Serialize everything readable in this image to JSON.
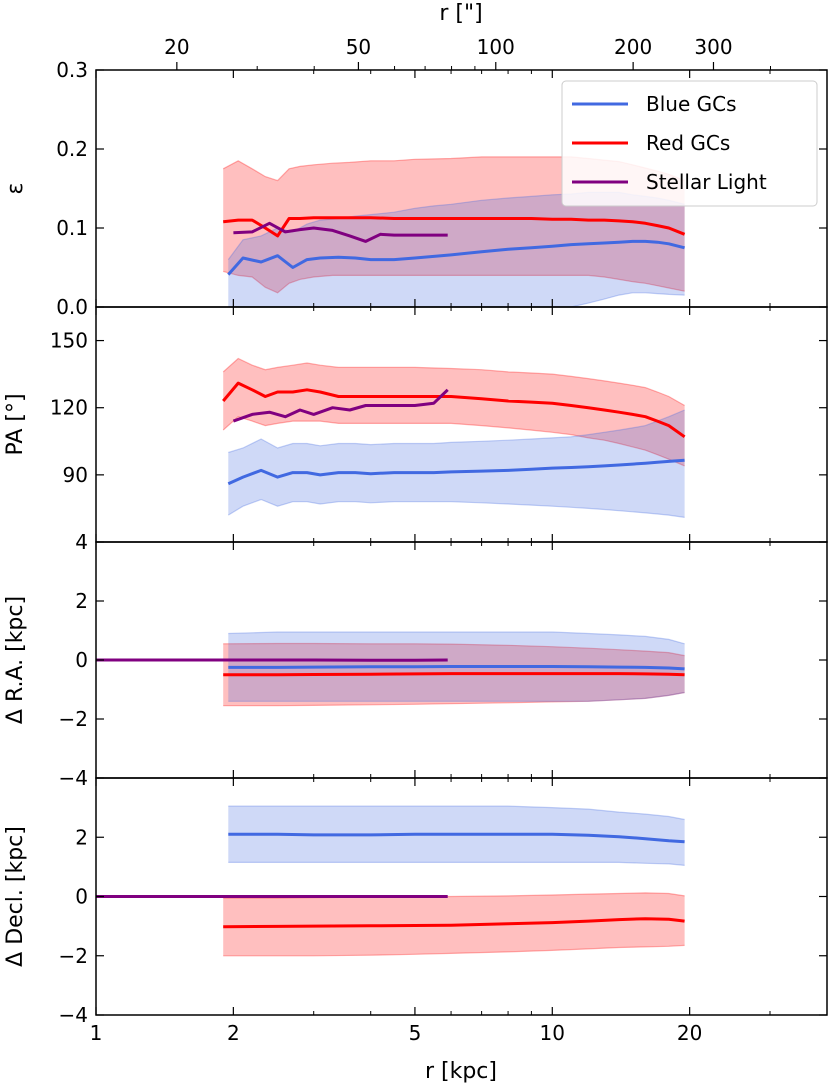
{
  "chart_data": {
    "type": "line",
    "figure": "GC system and stellar light profiles vs radius",
    "x_axis": {
      "label": "r [kpc]",
      "scale": "log",
      "range": [
        1,
        40
      ],
      "ticks": [
        1,
        2,
        5,
        10,
        20
      ]
    },
    "top_axis": {
      "label": "r [\"]",
      "ticks": [
        20,
        50,
        100,
        200,
        300
      ],
      "arcsec_per_kpc": 13.3
    },
    "legend": {
      "position": "top-right",
      "entries": [
        {
          "name": "Blue GCs",
          "color": "#4169e1"
        },
        {
          "name": "Red GCs",
          "color": "#ff0000"
        },
        {
          "name": "Stellar Light",
          "color": "#800080"
        }
      ]
    },
    "panels": [
      {
        "id": "ellipticity",
        "ylabel": "ε",
        "ylim": [
          0,
          0.3
        ],
        "yticks": [
          "0.0",
          "0.1",
          "0.2",
          "0.3"
        ],
        "series": [
          {
            "name": "Blue GCs",
            "x": [
              1.95,
              2.1,
              2.3,
              2.5,
              2.7,
              2.9,
              3.1,
              3.4,
              3.7,
              4.0,
              4.5,
              5.0,
              5.5,
              6.0,
              7.0,
              8.0,
              9.0,
              10.0,
              11.0,
              12.0,
              13.0,
              14.0,
              15.0,
              16.0,
              17.0,
              18.0,
              19.5
            ],
            "y": [
              0.041,
              0.062,
              0.057,
              0.065,
              0.05,
              0.06,
              0.062,
              0.063,
              0.062,
              0.06,
              0.06,
              0.062,
              0.064,
              0.066,
              0.07,
              0.073,
              0.075,
              0.077,
              0.079,
              0.08,
              0.081,
              0.082,
              0.083,
              0.083,
              0.082,
              0.08,
              0.075
            ],
            "lower": [
              0.0,
              0.0,
              0.0,
              0.0,
              0.0,
              0.0,
              0.0,
              0.0,
              0.0,
              0.0,
              0.0,
              0.0,
              0.0,
              0.0,
              0.0,
              0.0,
              0.0,
              0.0,
              0.0,
              0.005,
              0.01,
              0.015,
              0.018,
              0.018,
              0.017,
              0.016,
              0.015
            ],
            "upper": [
              0.06,
              0.085,
              0.09,
              0.1,
              0.095,
              0.105,
              0.11,
              0.112,
              0.115,
              0.117,
              0.12,
              0.125,
              0.128,
              0.13,
              0.135,
              0.138,
              0.14,
              0.142,
              0.143,
              0.145,
              0.145,
              0.145,
              0.142,
              0.14,
              0.138,
              0.135,
              0.13
            ]
          },
          {
            "name": "Red GCs",
            "x": [
              1.9,
              2.05,
              2.2,
              2.35,
              2.5,
              2.65,
              2.8,
              3.0,
              3.3,
              3.6,
              4.0,
              4.5,
              5.0,
              6.0,
              7.0,
              8.0,
              9.0,
              10.0,
              11.0,
              12.0,
              13.0,
              14.0,
              15.0,
              16.0,
              17.0,
              18.0,
              19.5
            ],
            "y": [
              0.108,
              0.11,
              0.11,
              0.1,
              0.09,
              0.112,
              0.112,
              0.113,
              0.113,
              0.113,
              0.113,
              0.112,
              0.112,
              0.112,
              0.112,
              0.112,
              0.112,
              0.111,
              0.111,
              0.11,
              0.11,
              0.109,
              0.108,
              0.106,
              0.103,
              0.1,
              0.092
            ],
            "lower": [
              0.045,
              0.04,
              0.038,
              0.025,
              0.018,
              0.03,
              0.035,
              0.038,
              0.04,
              0.04,
              0.04,
              0.04,
              0.04,
              0.04,
              0.04,
              0.04,
              0.04,
              0.04,
              0.04,
              0.04,
              0.038,
              0.035,
              0.032,
              0.03,
              0.027,
              0.024,
              0.02
            ],
            "upper": [
              0.175,
              0.185,
              0.175,
              0.165,
              0.16,
              0.175,
              0.178,
              0.18,
              0.182,
              0.183,
              0.185,
              0.185,
              0.187,
              0.188,
              0.19,
              0.19,
              0.19,
              0.19,
              0.19,
              0.188,
              0.186,
              0.184,
              0.18,
              0.176,
              0.172,
              0.168,
              0.16
            ]
          },
          {
            "name": "Stellar Light",
            "x": [
              2.0,
              2.2,
              2.4,
              2.6,
              2.8,
              3.0,
              3.3,
              3.6,
              3.9,
              4.2,
              4.5,
              5.0,
              5.5,
              5.9
            ],
            "y": [
              0.094,
              0.095,
              0.106,
              0.095,
              0.098,
              0.1,
              0.097,
              0.09,
              0.083,
              0.092,
              0.091,
              0.091,
              0.091,
              0.091
            ]
          }
        ]
      },
      {
        "id": "position-angle",
        "ylabel": "PA [°]",
        "ylim": [
          60,
          165
        ],
        "yticks": [
          "90",
          "120",
          "150"
        ],
        "series": [
          {
            "name": "Blue GCs",
            "x": [
              1.95,
              2.1,
              2.3,
              2.5,
              2.7,
              2.9,
              3.1,
              3.4,
              3.7,
              4.0,
              4.5,
              5.0,
              5.5,
              6.0,
              7.0,
              8.0,
              9.0,
              10.0,
              11.0,
              12.0,
              13.0,
              14.0,
              15.0,
              16.0,
              17.0,
              18.0,
              19.5
            ],
            "y": [
              86,
              89,
              92,
              89,
              91,
              91,
              90,
              91,
              91,
              90.5,
              91,
              91,
              91,
              91.3,
              91.7,
              92,
              92.5,
              93,
              93.3,
              93.6,
              94,
              94.4,
              94.8,
              95.2,
              95.6,
              96,
              96.5
            ],
            "lower": [
              72,
              76,
              79,
              76,
              78,
              78,
              77,
              78,
              78,
              77.5,
              78,
              78,
              78,
              78,
              77.5,
              77,
              76.5,
              76,
              75.5,
              75,
              74.5,
              74,
              73.5,
              73,
              72.5,
              72,
              71
            ],
            "upper": [
              100,
              102,
              106,
              102,
              104,
              104,
              103,
              104,
              104,
              103.5,
              104,
              104,
              104,
              104.5,
              105,
              105.5,
              106,
              106.5,
              107,
              108,
              109,
              110,
              111,
              112,
              114,
              116,
              119
            ]
          },
          {
            "name": "Red GCs",
            "x": [
              1.9,
              2.05,
              2.2,
              2.35,
              2.5,
              2.7,
              2.9,
              3.1,
              3.4,
              3.7,
              4.0,
              4.5,
              5.0,
              6.0,
              7.0,
              8.0,
              9.0,
              10.0,
              11.0,
              12.0,
              13.0,
              14.0,
              15.0,
              16.0,
              17.0,
              18.0,
              19.5
            ],
            "y": [
              123,
              131,
              128,
              125,
              127,
              127,
              128,
              127,
              125,
              125,
              125,
              125,
              125,
              125,
              124,
              123,
              122.5,
              122,
              121,
              120,
              119,
              118,
              117,
              116,
              114,
              112,
              107
            ],
            "lower": [
              110,
              116,
              114,
              112,
              113,
              114,
              114,
              114,
              113,
              113,
              113,
              113,
              113,
              113,
              112,
              111,
              110,
              109,
              108,
              106.5,
              105.5,
              104,
              102.5,
              101,
              99,
              97,
              94
            ],
            "upper": [
              136,
              142,
              139,
              137,
              138,
              139,
              140,
              139,
              138,
              138,
              138,
              138,
              138,
              137.5,
              137,
              136,
              135.5,
              135,
              134,
              133,
              132,
              131,
              130,
              129,
              127,
              125,
              121
            ]
          },
          {
            "name": "Stellar Light",
            "x": [
              2.0,
              2.2,
              2.4,
              2.6,
              2.8,
              3.0,
              3.3,
              3.6,
              3.9,
              4.2,
              4.5,
              5.0,
              5.5,
              5.9
            ],
            "y": [
              114,
              117,
              118,
              116,
              119,
              117,
              120,
              119,
              121,
              121,
              121,
              121,
              122,
              128
            ]
          }
        ]
      },
      {
        "id": "delta-ra",
        "ylabel": "Δ R.A. [kpc]",
        "ylim": [
          -4,
          4
        ],
        "yticks": [
          "−4",
          "−2",
          "0",
          "2",
          "4"
        ],
        "series": [
          {
            "name": "Blue GCs",
            "x": [
              1.95,
              2.5,
              3.0,
              4.0,
              5.0,
              6.0,
              8.0,
              10.0,
              12.0,
              14.0,
              16.0,
              18.0,
              19.5
            ],
            "y": [
              -0.25,
              -0.25,
              -0.24,
              -0.23,
              -0.23,
              -0.22,
              -0.22,
              -0.22,
              -0.23,
              -0.24,
              -0.25,
              -0.27,
              -0.3
            ],
            "lower": [
              -1.4,
              -1.4,
              -1.4,
              -1.4,
              -1.4,
              -1.4,
              -1.4,
              -1.4,
              -1.4,
              -1.35,
              -1.3,
              -1.2,
              -1.1
            ],
            "upper": [
              0.9,
              0.95,
              0.95,
              0.95,
              0.95,
              0.95,
              0.95,
              0.95,
              0.9,
              0.85,
              0.8,
              0.7,
              0.55
            ]
          },
          {
            "name": "Red GCs",
            "x": [
              1.9,
              2.5,
              3.0,
              4.0,
              5.0,
              6.0,
              8.0,
              10.0,
              12.0,
              14.0,
              16.0,
              18.0,
              19.5
            ],
            "y": [
              -0.5,
              -0.5,
              -0.49,
              -0.48,
              -0.47,
              -0.46,
              -0.46,
              -0.46,
              -0.46,
              -0.46,
              -0.47,
              -0.48,
              -0.5
            ],
            "lower": [
              -1.55,
              -1.55,
              -1.54,
              -1.52,
              -1.5,
              -1.48,
              -1.45,
              -1.42,
              -1.4,
              -1.35,
              -1.3,
              -1.2,
              -1.1
            ],
            "upper": [
              0.55,
              0.56,
              0.56,
              0.55,
              0.55,
              0.54,
              0.5,
              0.45,
              0.4,
              0.35,
              0.3,
              0.25,
              0.15
            ]
          },
          {
            "name": "Stellar Light",
            "x": [
              1.0,
              2.0,
              3.0,
              4.0,
              5.0,
              5.9
            ],
            "y": [
              0.0,
              0.0,
              0.0,
              -0.01,
              -0.01,
              0.0
            ]
          }
        ]
      },
      {
        "id": "delta-decl",
        "ylabel": "Δ Decl. [kpc]",
        "ylim": [
          -4,
          4
        ],
        "yticks": [
          "−4",
          "−2",
          "0",
          "2"
        ],
        "series": [
          {
            "name": "Blue GCs",
            "x": [
              1.95,
              2.5,
              3.0,
              4.0,
              5.0,
              6.0,
              8.0,
              10.0,
              12.0,
              14.0,
              16.0,
              18.0,
              19.5
            ],
            "y": [
              2.1,
              2.1,
              2.08,
              2.08,
              2.1,
              2.1,
              2.1,
              2.1,
              2.07,
              2.02,
              1.95,
              1.88,
              1.85
            ],
            "lower": [
              1.15,
              1.15,
              1.15,
              1.15,
              1.15,
              1.15,
              1.15,
              1.15,
              1.15,
              1.15,
              1.12,
              1.1,
              1.05
            ],
            "upper": [
              3.05,
              3.05,
              3.05,
              3.05,
              3.05,
              3.05,
              3.05,
              3.0,
              2.95,
              2.85,
              2.78,
              2.7,
              2.6
            ]
          },
          {
            "name": "Red GCs",
            "x": [
              1.9,
              2.5,
              3.0,
              4.0,
              5.0,
              6.0,
              8.0,
              10.0,
              12.0,
              14.0,
              16.0,
              18.0,
              19.5
            ],
            "y": [
              -1.02,
              -1.01,
              -1.0,
              -0.99,
              -0.98,
              -0.97,
              -0.92,
              -0.88,
              -0.83,
              -0.78,
              -0.75,
              -0.77,
              -0.83
            ],
            "lower": [
              -2.0,
              -2.0,
              -2.0,
              -1.98,
              -1.95,
              -1.92,
              -1.87,
              -1.82,
              -1.77,
              -1.72,
              -1.7,
              -1.68,
              -1.65
            ],
            "upper": [
              -0.05,
              -0.05,
              -0.04,
              -0.02,
              0.0,
              0.0,
              0.02,
              0.05,
              0.08,
              0.1,
              0.12,
              0.1,
              0.02
            ]
          },
          {
            "name": "Stellar Light",
            "x": [
              1.0,
              2.0,
              3.0,
              4.0,
              5.0,
              5.9
            ],
            "y": [
              0.0,
              0.0,
              0.0,
              0.0,
              0.0,
              0.0
            ]
          }
        ]
      }
    ]
  }
}
